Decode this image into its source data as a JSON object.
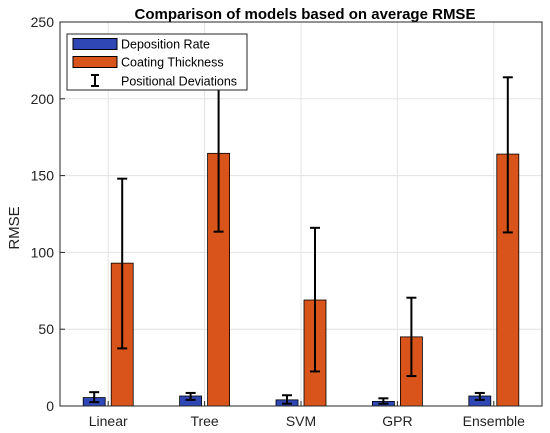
{
  "chart_data": {
    "type": "bar",
    "title": "Comparison of models based on average RMSE",
    "xlabel": "",
    "ylabel": "RMSE",
    "categories": [
      "Linear",
      "Tree",
      "SVM",
      "GPR",
      "Ensemble"
    ],
    "ylim": [
      0,
      250
    ],
    "yticks": [
      0,
      50,
      100,
      150,
      200,
      250
    ],
    "grid": true,
    "legend_position": "top-left",
    "series": [
      {
        "name": "Deposition Rate",
        "values": [
          5.5,
          6.5,
          4,
          3,
          6.5
        ],
        "color": "#2e47b5"
      },
      {
        "name": "Coating Thickness",
        "values": [
          93,
          164.5,
          69,
          45,
          164
        ],
        "color": "#d9541a"
      }
    ],
    "error_bars": {
      "name": "Positional Deviations",
      "color": "#000000",
      "series": [
        {
          "low": [
            2.5,
            4,
            1.5,
            1.5,
            4
          ],
          "high": [
            9,
            8.5,
            7,
            5,
            8.5
          ]
        },
        {
          "low": [
            37.5,
            113.5,
            22.5,
            19.5,
            113
          ],
          "high": [
            148,
            217,
            116,
            70.5,
            214
          ]
        }
      ]
    }
  }
}
